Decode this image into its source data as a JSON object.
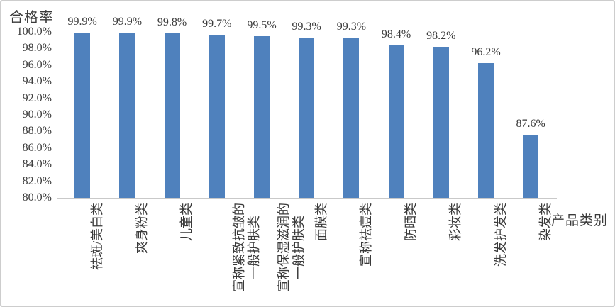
{
  "window": {
    "background_color": "#ffffff",
    "border_color": "#cdcdcd"
  },
  "chart_data": {
    "type": "bar",
    "title": "",
    "ylabel": "合格率",
    "xlabel": "产品类别",
    "ylim": [
      80,
      100
    ],
    "ytick_step": 2,
    "ytick_labels": [
      "100.0%",
      "98.0%",
      "96.0%",
      "94.0%",
      "92.0%",
      "90.0%",
      "88.0%",
      "86.0%",
      "84.0%",
      "82.0%",
      "80.0%"
    ],
    "grid": false,
    "legend": "none",
    "bar_color": "#4f81bd",
    "axis_line_color": "#c9c9c9",
    "text_color": "#3a3a3a",
    "categories": [
      [
        "祛斑/美白类"
      ],
      [
        "爽身粉类"
      ],
      [
        "儿童类"
      ],
      [
        "宣称紧致抗皱的",
        "一般护肤类"
      ],
      [
        "宣称保湿滋润的",
        "一般护肤类"
      ],
      [
        "面膜类"
      ],
      [
        "宣称祛痘类"
      ],
      [
        "防晒类"
      ],
      [
        "彩妆类"
      ],
      [
        "洗发护发类"
      ],
      [
        "染发类"
      ]
    ],
    "values": [
      99.9,
      99.9,
      99.8,
      99.7,
      99.5,
      99.3,
      99.3,
      98.4,
      98.2,
      96.2,
      87.6
    ],
    "data_labels": [
      "99.9%",
      "99.9%",
      "99.8%",
      "99.7%",
      "99.5%",
      "99.3%",
      "99.3%",
      "98.4%",
      "98.2%",
      "96.2%",
      "87.6%"
    ]
  }
}
